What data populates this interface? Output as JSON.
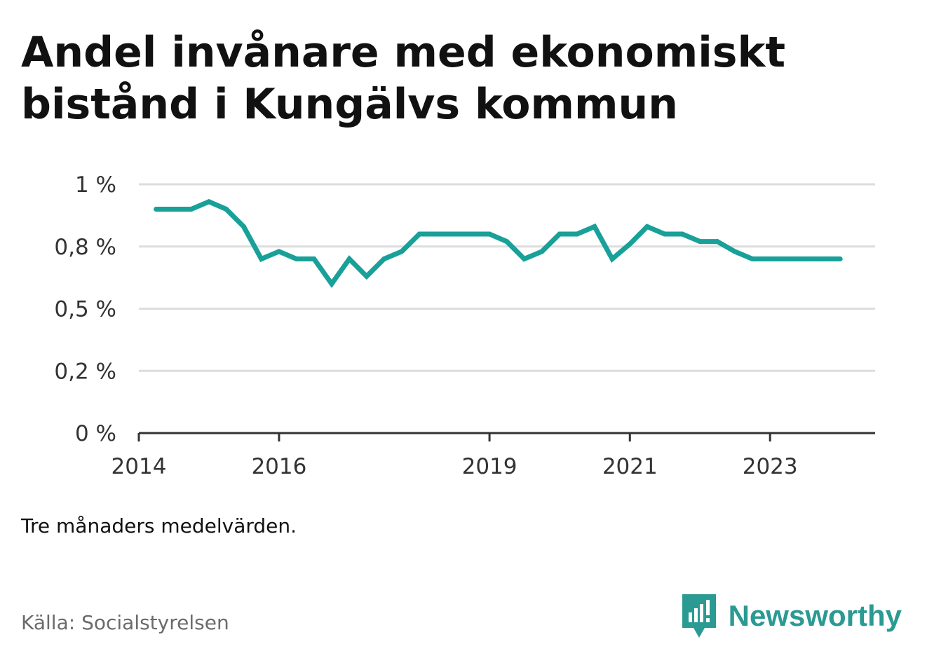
{
  "title": "Andel invånare med ekonomiskt bistånd i Kungälvs kommun",
  "note": "Tre månaders medelvärden.",
  "source": "Källa: Socialstyrelsen",
  "brand": {
    "name": "Newsworthy",
    "icon": "newsworthy-logo-icon",
    "color": "#2a9a92"
  },
  "colors": {
    "line": "#18a099",
    "grid": "#dddddd",
    "axis": "#333333"
  },
  "chart_data": {
    "type": "line",
    "title": "Andel invånare med ekonomiskt bistånd i Kungälvs kommun",
    "xlabel": "",
    "ylabel": "",
    "grid": true,
    "legend": "none",
    "ylim": [
      0,
      1
    ],
    "yticks": [
      0,
      0.25,
      0.5,
      0.75,
      1
    ],
    "ytick_labels": [
      "0 %",
      "0,2 %",
      "0,5 %",
      "0,8 %",
      "1 %"
    ],
    "xlim": [
      "2014-01-01",
      "2024-07-01"
    ],
    "xticks": [
      "2014-01-01",
      "2016-01-01",
      "2019-01-01",
      "2021-01-01",
      "2023-01-01"
    ],
    "xtick_labels": [
      "2014",
      "2016",
      "2019",
      "2021",
      "2023"
    ],
    "series": [
      {
        "name": "",
        "x": [
          "2014-04-01",
          "2014-07-01",
          "2014-10-01",
          "2015-01-01",
          "2015-04-01",
          "2015-07-01",
          "2015-10-01",
          "2016-01-01",
          "2016-04-01",
          "2016-07-01",
          "2016-10-01",
          "2017-01-01",
          "2017-04-01",
          "2017-07-01",
          "2017-10-01",
          "2018-01-01",
          "2018-04-01",
          "2018-07-01",
          "2018-10-01",
          "2019-01-01",
          "2019-04-01",
          "2019-07-01",
          "2019-10-01",
          "2020-01-01",
          "2020-04-01",
          "2020-07-01",
          "2020-10-01",
          "2021-01-01",
          "2021-04-01",
          "2021-07-01",
          "2021-10-01",
          "2022-01-01",
          "2022-04-01",
          "2022-07-01",
          "2022-10-01",
          "2023-01-01",
          "2023-04-01",
          "2023-07-01",
          "2023-10-01",
          "2024-01-01"
        ],
        "values": [
          0.9,
          0.9,
          0.9,
          0.93,
          0.9,
          0.83,
          0.7,
          0.73,
          0.7,
          0.7,
          0.6,
          0.7,
          0.63,
          0.7,
          0.73,
          0.8,
          0.8,
          0.8,
          0.8,
          0.8,
          0.77,
          0.7,
          0.73,
          0.8,
          0.8,
          0.83,
          0.7,
          0.76,
          0.83,
          0.8,
          0.8,
          0.77,
          0.77,
          0.73,
          0.7,
          0.7,
          0.7,
          0.7,
          0.7,
          0.7
        ]
      }
    ]
  }
}
